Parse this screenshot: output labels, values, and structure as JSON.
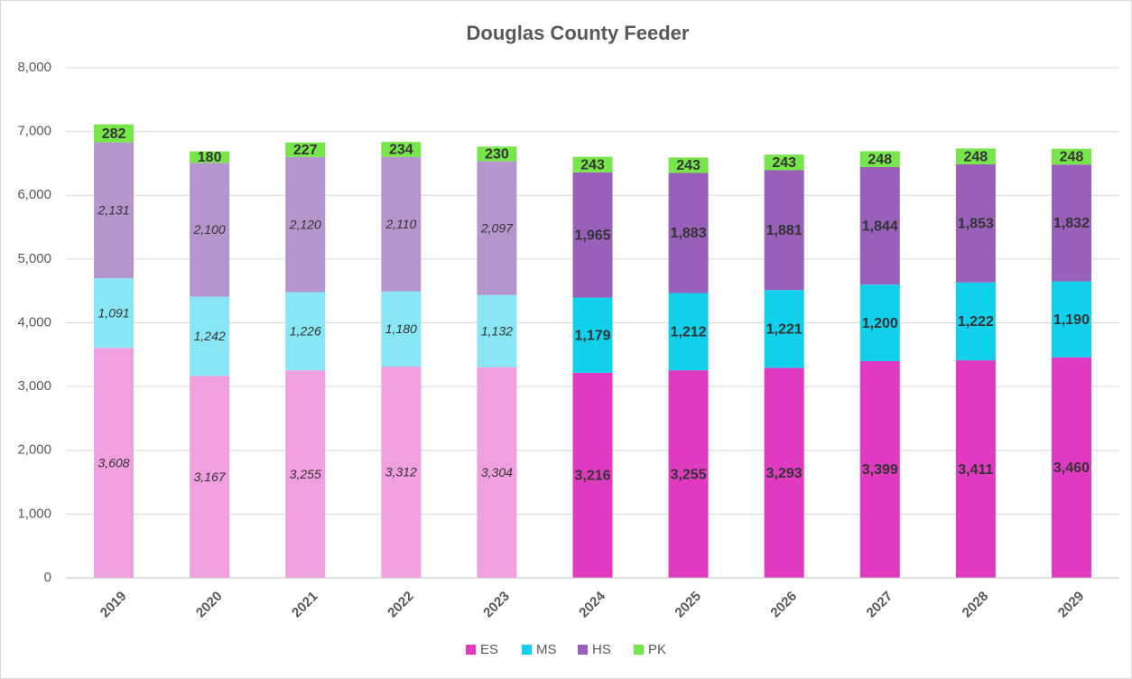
{
  "chart_data": {
    "type": "stacked_bar",
    "title": "Douglas County Feeder",
    "categories": [
      "2019",
      "2020",
      "2021",
      "2022",
      "2023",
      "2024",
      "2025",
      "2026",
      "2027",
      "2028",
      "2029"
    ],
    "series": [
      {
        "name": "ES",
        "color": "#e03ac0",
        "colors": [
          "#f09fdf",
          "#f09fdf",
          "#f09fdf",
          "#f09fdf",
          "#f09fdf",
          "#e03ac0",
          "#e03ac0",
          "#e03ac0",
          "#e03ac0",
          "#e03ac0",
          "#e03ac0"
        ],
        "values": [
          3608,
          3167,
          3255,
          3312,
          3304,
          3216,
          3255,
          3293,
          3399,
          3411,
          3460
        ],
        "value_labels": [
          "3,608",
          "3,167",
          "3,255",
          "3,312",
          "3,304",
          "3,216",
          "3,255",
          "3,293",
          "3,399",
          "3,411",
          "3,460"
        ]
      },
      {
        "name": "MS",
        "color": "#10d0ec",
        "colors": [
          "#88e6f5",
          "#88e6f5",
          "#88e6f5",
          "#88e6f5",
          "#88e6f5",
          "#10d0ec",
          "#10d0ec",
          "#10d0ec",
          "#10d0ec",
          "#10d0ec",
          "#10d0ec"
        ],
        "values": [
          1091,
          1242,
          1226,
          1180,
          1132,
          1179,
          1212,
          1221,
          1200,
          1222,
          1190
        ],
        "value_labels": [
          "1,091",
          "1,242",
          "1,226",
          "1,180",
          "1,132",
          "1,179",
          "1,212",
          "1,221",
          "1,200",
          "1,222",
          "1,190"
        ]
      },
      {
        "name": "HS",
        "color": "#9860b8",
        "colors": [
          "#b496cc",
          "#b496cc",
          "#b496cc",
          "#b496cc",
          "#b496cc",
          "#9860b8",
          "#9860b8",
          "#9860b8",
          "#9860b8",
          "#9860b8",
          "#9860b8"
        ],
        "values": [
          2131,
          2100,
          2120,
          2110,
          2097,
          1965,
          1883,
          1881,
          1844,
          1853,
          1832
        ],
        "value_labels": [
          "2,131",
          "2,100",
          "2,120",
          "2,110",
          "2,097",
          "1,965",
          "1,883",
          "1,881",
          "1,844",
          "1,853",
          "1,832"
        ]
      },
      {
        "name": "PK",
        "color": "#77e64a",
        "colors": [
          "#77e64a",
          "#77e64a",
          "#77e64a",
          "#77e64a",
          "#77e64a",
          "#77e64a",
          "#77e64a",
          "#77e64a",
          "#77e64a",
          "#77e64a",
          "#77e64a"
        ],
        "values": [
          282,
          180,
          227,
          234,
          230,
          243,
          243,
          243,
          248,
          248,
          248
        ]
      }
    ],
    "ylim": [
      0,
      8000
    ],
    "yticks": [
      0,
      {
        "value": 1000,
        "label": "1,000"
      },
      {
        "value": 2000,
        "label": "2,000"
      },
      {
        "value": 3000,
        "label": "3,000"
      },
      {
        "value": 4000,
        "label": "4,000"
      },
      {
        "value": 5000,
        "label": "5,000"
      },
      {
        "value": 6000,
        "label": "6,000"
      },
      {
        "value": 7000,
        "label": "7,000"
      },
      {
        "value": 8000,
        "label": "8,000"
      }
    ],
    "grid": true,
    "legend": "bottom"
  }
}
